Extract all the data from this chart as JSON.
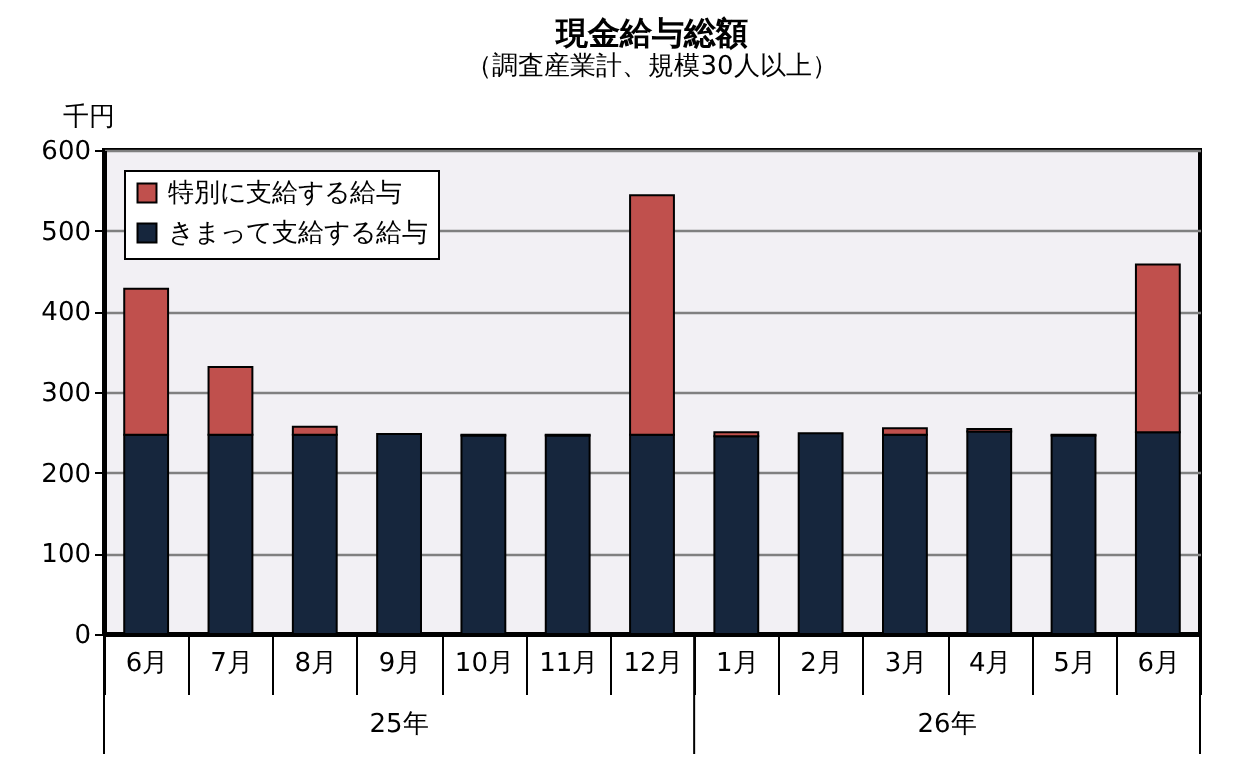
{
  "chart_data": {
    "type": "bar",
    "title": "現金給与総額",
    "subtitle": "（調査産業計、規模30人以上）",
    "ylabel": "千円",
    "categories": [
      "6月",
      "7月",
      "8月",
      "9月",
      "10月",
      "11月",
      "12月",
      "1月",
      "2月",
      "3月",
      "4月",
      "5月",
      "6月"
    ],
    "annotations": [
      "25年",
      "26年"
    ],
    "stacked": true,
    "series": [
      {
        "name": "きまって支給する給与",
        "color": "#16263d",
        "values": [
          247,
          247,
          247,
          248,
          246,
          246,
          247,
          245,
          249,
          247,
          251,
          246,
          250
        ]
      },
      {
        "name": "特別に支給する給与",
        "color": "#c0504d",
        "values": [
          181,
          84,
          10,
          null,
          1,
          1,
          297,
          5,
          null,
          8,
          3,
          1,
          208
        ]
      }
    ],
    "ylim": [
      0,
      600
    ],
    "yticks": [
      0,
      100,
      200,
      300,
      400,
      500,
      600
    ],
    "grid": "y",
    "legend": "top left"
  }
}
